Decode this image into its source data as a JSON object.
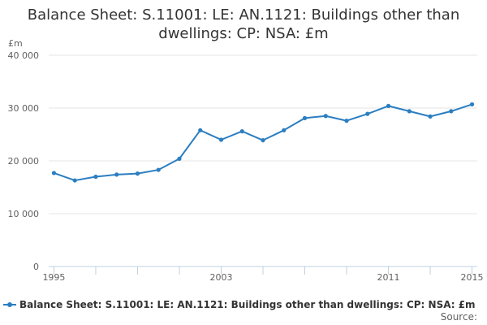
{
  "chart_data": {
    "type": "line",
    "title_lines": [
      "Balance Sheet: S.11001: LE: AN.1121: Buildings other than",
      "dwellings: CP: NSA: £m"
    ],
    "y_unit": "£m",
    "ylim": [
      0,
      40000
    ],
    "y_ticks": [
      {
        "value": 0,
        "label": "0"
      },
      {
        "value": 10000,
        "label": "10 000"
      },
      {
        "value": 20000,
        "label": "20 000"
      },
      {
        "value": 30000,
        "label": "30 000"
      },
      {
        "value": 40000,
        "label": "40 000"
      }
    ],
    "xlim": [
      1995,
      2015
    ],
    "x_tick_labels": [
      {
        "value": 1995,
        "label": "1995"
      },
      {
        "value": 2003,
        "label": "2003"
      },
      {
        "value": 2011,
        "label": "2011"
      },
      {
        "value": 2015,
        "label": "2015"
      }
    ],
    "grid": true,
    "legend_position": "bottom",
    "series": [
      {
        "name": "Balance Sheet: S.11001: LE: AN.1121: Buildings other than dwellings: CP: NSA: £m",
        "color": "#2b7ec1",
        "x": [
          1995,
          1996,
          1997,
          1998,
          1999,
          2000,
          2001,
          2002,
          2003,
          2004,
          2005,
          2006,
          2007,
          2008,
          2009,
          2010,
          2011,
          2012,
          2013,
          2014,
          2015
        ],
        "values": [
          17700,
          16300,
          17000,
          17400,
          17600,
          18300,
          20400,
          25800,
          24000,
          25600,
          23900,
          25800,
          28100,
          28500,
          27600,
          28900,
          30400,
          29400,
          28400,
          29400,
          30700
        ]
      }
    ],
    "source_label": "Source:"
  }
}
